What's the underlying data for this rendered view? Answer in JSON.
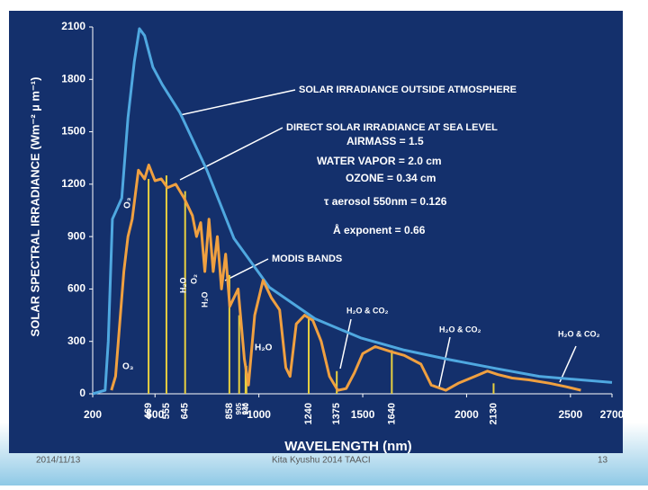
{
  "chart_data": {
    "type": "line",
    "ylabel": "SOLAR SPECTRAL IRRADIANCE (Wm⁻² µ m⁻¹)",
    "xlabel": "WAVELENGTH (nm)",
    "xlim": [
      200,
      2700
    ],
    "ylim": [
      0,
      2100
    ],
    "xticks": [
      200,
      500,
      1000,
      1500,
      2000,
      2500,
      2700
    ],
    "yticks": [
      0,
      300,
      600,
      900,
      1200,
      1500,
      1800,
      2100
    ],
    "series": [
      {
        "name": "SOLAR IRRADIANCE OUTSIDE ATMOSPHERE",
        "color": "#4fa8e0",
        "x": [
          200,
          260,
          275,
          295,
          340,
          370,
          400,
          425,
          450,
          490,
          535,
          620,
          750,
          880,
          1050,
          1270,
          1490,
          1700,
          1920,
          2140,
          2350,
          2700
        ],
        "values": [
          0,
          20,
          300,
          1000,
          1120,
          1580,
          1900,
          2090,
          2050,
          1870,
          1770,
          1610,
          1280,
          890,
          610,
          430,
          320,
          250,
          195,
          145,
          100,
          65
        ]
      },
      {
        "name": "DIRECT SOLAR IRRADIANCE AT SEA LEVEL",
        "color": "#f0a040",
        "x": [
          290,
          310,
          330,
          350,
          370,
          390,
          420,
          450,
          470,
          500,
          530,
          560,
          600,
          640,
          680,
          700,
          720,
          740,
          760,
          780,
          800,
          820,
          840,
          860,
          900,
          930,
          950,
          980,
          1020,
          1060,
          1100,
          1130,
          1150,
          1180,
          1220,
          1260,
          1300,
          1340,
          1380,
          1420,
          1460,
          1500,
          1560,
          1640,
          1700,
          1780,
          1830,
          1900,
          1960,
          2040,
          2100,
          2150,
          2220,
          2300,
          2400,
          2480,
          2550
        ],
        "values": [
          20,
          100,
          400,
          700,
          900,
          1000,
          1280,
          1230,
          1310,
          1220,
          1230,
          1180,
          1200,
          1120,
          1020,
          900,
          980,
          700,
          1000,
          700,
          900,
          600,
          800,
          500,
          600,
          200,
          50,
          450,
          650,
          550,
          480,
          150,
          100,
          400,
          450,
          420,
          300,
          100,
          20,
          30,
          120,
          230,
          270,
          240,
          220,
          170,
          50,
          20,
          60,
          100,
          130,
          110,
          90,
          80,
          60,
          40,
          20
        ]
      }
    ],
    "bands": {
      "name": "MODIS BANDS",
      "color": "#e8d040",
      "x": [
        469,
        555,
        645,
        858,
        905,
        936,
        940,
        1240,
        1375,
        1640,
        2130
      ],
      "values": [
        1230,
        1250,
        1160,
        680,
        450,
        160,
        160,
        430,
        130,
        250,
        60
      ]
    },
    "annotations": [
      "AIRMASS = 1.5",
      "WATER VAPOR = 2.0 cm",
      "OZONE = 0.34 cm",
      "τ aerosol 550nm = 0.126",
      "Å exponent = 0.66",
      "H₂O & CO₂",
      "H₂O & CO₂",
      "H₂O & CO₂",
      "O₃",
      "O₃",
      "H₂O",
      "H₂O",
      "O₂",
      "H₂O"
    ]
  },
  "footer": {
    "date": "2014/11/13",
    "event": "Kita Kyushu 2014 TAACI",
    "page": "13"
  }
}
